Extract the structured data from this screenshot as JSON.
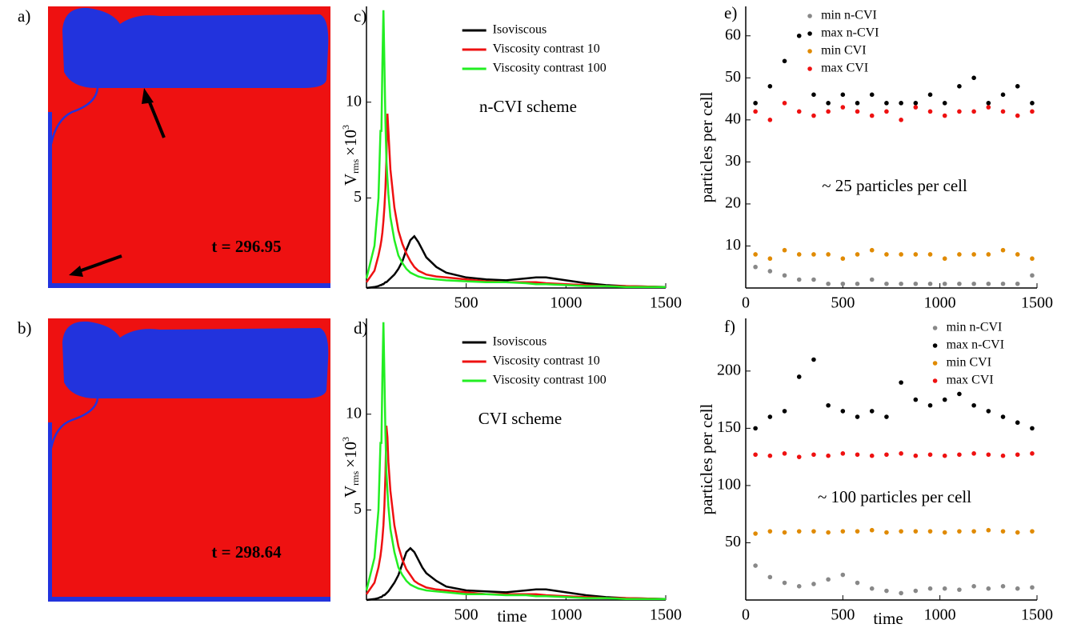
{
  "chart_data": [
    {
      "type": "image",
      "panel_label": "a)",
      "annotation": "t = 296.95"
    },
    {
      "type": "image",
      "panel_label": "b)",
      "annotation": "t = 298.64"
    },
    {
      "type": "line",
      "panel_label": "c)",
      "annotation": "n-CVI scheme",
      "ylabel": {
        "main": "V",
        "sub": "rms",
        "factor": "×10",
        "exp": "3"
      },
      "xlim": [
        0,
        1500
      ],
      "xticks": [
        500,
        1000,
        1500
      ],
      "ylim": [
        0.3,
        15
      ],
      "yticks": [
        5,
        10
      ],
      "legend": "upper center",
      "x": [
        0,
        40,
        60,
        70,
        75,
        80,
        85,
        90,
        95,
        100,
        105,
        110,
        120,
        140,
        160,
        180,
        200,
        220,
        240,
        260,
        280,
        300,
        350,
        400,
        500,
        600,
        700,
        800,
        850,
        900,
        1000,
        1100,
        1200,
        1300,
        1500
      ],
      "series": [
        {
          "name": "Isoviscous",
          "color": "#000000",
          "values": [
            0.3,
            0.35,
            0.4,
            0.45,
            0.45,
            0.5,
            0.5,
            0.55,
            0.6,
            0.6,
            0.65,
            0.7,
            0.8,
            1.0,
            1.3,
            1.7,
            2.3,
            2.8,
            3.0,
            2.7,
            2.3,
            1.9,
            1.4,
            1.1,
            0.85,
            0.75,
            0.7,
            0.8,
            0.85,
            0.85,
            0.7,
            0.55,
            0.45,
            0.4,
            0.35
          ]
        },
        {
          "name": "Viscosity contrast 10",
          "color": "#ee1111",
          "values": [
            0.6,
            1.2,
            2,
            2.5,
            2.8,
            3.2,
            3.8,
            4.5,
            5.5,
            7,
            9.4,
            8.5,
            6.5,
            4.5,
            3.3,
            2.6,
            2.1,
            1.7,
            1.4,
            1.2,
            1.1,
            1.0,
            0.9,
            0.85,
            0.75,
            0.65,
            0.6,
            0.6,
            0.6,
            0.55,
            0.5,
            0.45,
            0.4,
            0.4,
            0.35
          ]
        },
        {
          "name": "Viscosity contrast 100",
          "color": "#22ee22",
          "values": [
            0.8,
            2.5,
            5,
            8.5,
            8.5,
            12,
            14.8,
            12,
            9,
            7,
            6,
            5.2,
            4,
            2.8,
            2.0,
            1.6,
            1.3,
            1.1,
            1.0,
            0.9,
            0.85,
            0.8,
            0.75,
            0.7,
            0.65,
            0.6,
            0.6,
            0.55,
            0.5,
            0.5,
            0.45,
            0.4,
            0.4,
            0.35,
            0.35
          ]
        }
      ]
    },
    {
      "type": "line",
      "panel_label": "d)",
      "annotation": "CVI scheme",
      "xlabel": "time",
      "ylabel": {
        "main": "V",
        "sub": "rms",
        "factor": "×10",
        "exp": "3"
      },
      "xlim": [
        0,
        1500
      ],
      "xticks": [
        500,
        1000,
        1500
      ],
      "ylim": [
        0.3,
        15
      ],
      "yticks": [
        5,
        10
      ],
      "legend": "upper center",
      "x": [
        0,
        40,
        60,
        70,
        75,
        80,
        85,
        90,
        95,
        100,
        105,
        110,
        120,
        140,
        160,
        180,
        200,
        220,
        240,
        260,
        280,
        300,
        350,
        400,
        500,
        600,
        700,
        800,
        850,
        900,
        1000,
        1100,
        1200,
        1300,
        1500
      ],
      "series": [
        {
          "name": "Isoviscous",
          "color": "#000000",
          "values": [
            0.3,
            0.35,
            0.4,
            0.45,
            0.45,
            0.5,
            0.55,
            0.55,
            0.6,
            0.65,
            0.7,
            0.75,
            0.9,
            1.2,
            1.6,
            2.2,
            2.8,
            3.0,
            2.8,
            2.4,
            2.0,
            1.7,
            1.3,
            1.0,
            0.8,
            0.75,
            0.7,
            0.8,
            0.85,
            0.85,
            0.7,
            0.55,
            0.45,
            0.4,
            0.35
          ]
        },
        {
          "name": "Viscosity contrast 10",
          "color": "#ee1111",
          "values": [
            0.6,
            1.2,
            2,
            2.6,
            3.0,
            3.5,
            4.2,
            5.2,
            6.8,
            9.4,
            8.8,
            7.5,
            6.0,
            4.2,
            3.1,
            2.4,
            1.9,
            1.6,
            1.3,
            1.15,
            1.05,
            0.95,
            0.85,
            0.8,
            0.7,
            0.6,
            0.6,
            0.6,
            0.6,
            0.55,
            0.5,
            0.45,
            0.4,
            0.4,
            0.35
          ]
        },
        {
          "name": "Viscosity contrast 100",
          "color": "#22ee22",
          "values": [
            0.8,
            2.5,
            5,
            8.5,
            8.5,
            12,
            14.8,
            12,
            9,
            7,
            6,
            5.2,
            4,
            2.8,
            2.0,
            1.6,
            1.3,
            1.1,
            1.0,
            0.9,
            0.85,
            0.8,
            0.75,
            0.7,
            0.6,
            0.6,
            0.55,
            0.55,
            0.5,
            0.5,
            0.45,
            0.4,
            0.4,
            0.35,
            0.35
          ]
        }
      ]
    },
    {
      "type": "scatter",
      "panel_label": "e)",
      "annotation": "~ 25 particles per cell",
      "ylabel": "particles per cell",
      "xlim": [
        0,
        1500
      ],
      "xticks": [
        0,
        500,
        1000,
        1500
      ],
      "ylim": [
        0,
        67
      ],
      "yticks": [
        10,
        20,
        30,
        40,
        50,
        60
      ],
      "legend": "upper left",
      "x": [
        50,
        125,
        200,
        275,
        350,
        425,
        500,
        575,
        650,
        725,
        800,
        875,
        950,
        1025,
        1100,
        1175,
        1250,
        1325,
        1400,
        1475
      ],
      "series": [
        {
          "name": "min n-CVI",
          "color": "#888888",
          "values": [
            5,
            4,
            3,
            2,
            2,
            1,
            1,
            1,
            2,
            1,
            1,
            1,
            1,
            1,
            1,
            1,
            1,
            1,
            1,
            3
          ]
        },
        {
          "name": "max n-CVI",
          "color": "#000000",
          "values": [
            44,
            48,
            54,
            60,
            46,
            44,
            46,
            44,
            46,
            44,
            44,
            44,
            46,
            44,
            48,
            50,
            44,
            46,
            48,
            44
          ]
        },
        {
          "name": "min CVI",
          "color": "#e08a00",
          "values": [
            8,
            7,
            9,
            8,
            8,
            8,
            7,
            8,
            9,
            8,
            8,
            8,
            8,
            7,
            8,
            8,
            8,
            9,
            8,
            7
          ]
        },
        {
          "name": "max CVI",
          "color": "#ee1111",
          "values": [
            42,
            40,
            44,
            42,
            41,
            42,
            43,
            42,
            41,
            42,
            40,
            43,
            42,
            41,
            42,
            42,
            43,
            42,
            41,
            42
          ]
        }
      ]
    },
    {
      "type": "scatter",
      "panel_label": "f)",
      "annotation": "~ 100 particles per cell",
      "xlabel": "time",
      "ylabel": "particles per cell",
      "xlim": [
        0,
        1500
      ],
      "xticks": [
        0,
        500,
        1000,
        1500
      ],
      "ylim": [
        0,
        246
      ],
      "yticks": [
        50,
        100,
        150,
        200
      ],
      "legend": "upper right",
      "x": [
        50,
        125,
        200,
        275,
        350,
        425,
        500,
        575,
        650,
        725,
        800,
        875,
        950,
        1025,
        1100,
        1175,
        1250,
        1325,
        1400,
        1475
      ],
      "series": [
        {
          "name": "min n-CVI",
          "color": "#888888",
          "values": [
            30,
            20,
            15,
            12,
            14,
            18,
            22,
            15,
            10,
            8,
            6,
            8,
            10,
            10,
            9,
            12,
            10,
            12,
            10,
            11
          ]
        },
        {
          "name": "max n-CVI",
          "color": "#000000",
          "values": [
            150,
            160,
            165,
            195,
            210,
            170,
            165,
            160,
            165,
            160,
            190,
            175,
            170,
            175,
            180,
            170,
            165,
            160,
            155,
            150
          ]
        },
        {
          "name": "min CVI",
          "color": "#e08a00",
          "values": [
            58,
            60,
            59,
            60,
            60,
            59,
            60,
            60,
            61,
            59,
            60,
            60,
            60,
            59,
            60,
            60,
            61,
            60,
            59,
            60
          ]
        },
        {
          "name": "max CVI",
          "color": "#ee1111",
          "values": [
            127,
            126,
            128,
            125,
            127,
            126,
            128,
            127,
            126,
            127,
            128,
            126,
            127,
            126,
            127,
            128,
            127,
            126,
            127,
            128
          ]
        }
      ]
    }
  ]
}
